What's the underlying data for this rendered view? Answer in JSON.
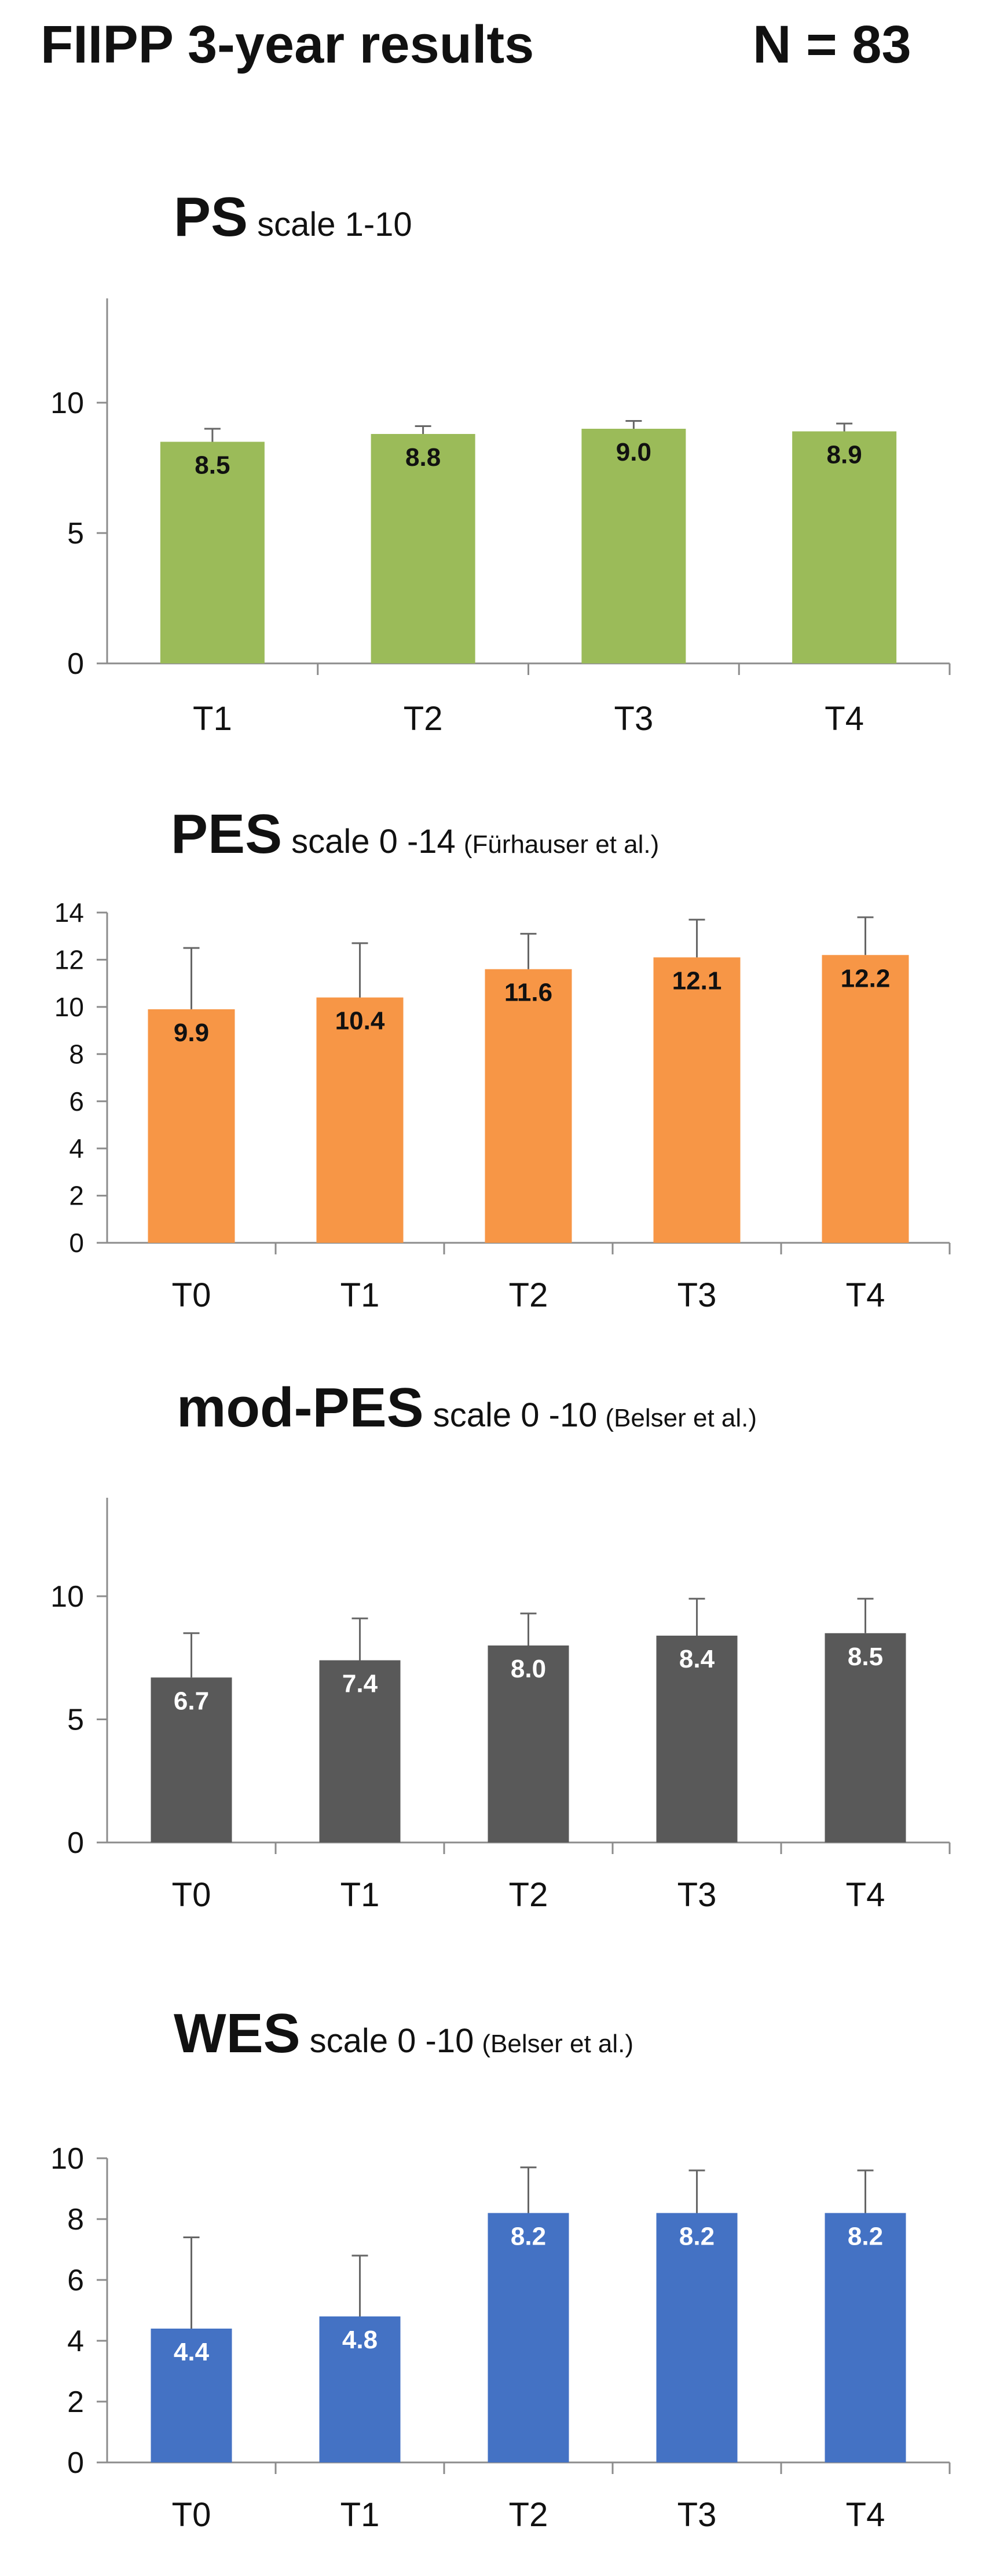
{
  "header": {
    "title": "FIIPP 3-year results",
    "n_label": "N = 83"
  },
  "chart_data": [
    {
      "type": "bar",
      "name": "PS",
      "scale": "scale 1-10",
      "citation": "",
      "color": "#9BBB59",
      "label_color": "#111111",
      "categories": [
        "T1",
        "T2",
        "T3",
        "T4"
      ],
      "values": [
        8.5,
        8.8,
        9.0,
        8.9
      ],
      "value_labels": [
        "8.5",
        "8.8",
        "9.0",
        "8.9"
      ],
      "error_upper": [
        0.5,
        0.3,
        0.3,
        0.3
      ],
      "ylim": [
        0,
        14
      ],
      "yticks": [
        0,
        5,
        10
      ],
      "ytick_labels": [
        "0",
        "5",
        "10"
      ],
      "xlabel": "",
      "ylabel": ""
    },
    {
      "type": "bar",
      "name": "PES",
      "scale": "scale 0 -14",
      "citation": "(Fürhauser et al.)",
      "color": "#F79646",
      "label_color": "#111111",
      "categories": [
        "T0",
        "T1",
        "T2",
        "T3",
        "T4"
      ],
      "values": [
        9.9,
        10.4,
        11.6,
        12.1,
        12.2
      ],
      "value_labels": [
        "9.9",
        "10.4",
        "11.6",
        "12.1",
        "12.2"
      ],
      "error_upper": [
        2.6,
        2.3,
        1.5,
        1.6,
        1.6
      ],
      "ylim": [
        0,
        14
      ],
      "yticks": [
        0,
        2,
        4,
        6,
        8,
        10,
        12,
        14
      ],
      "ytick_labels": [
        "0",
        "2",
        "4",
        "6",
        "8",
        "10",
        "12",
        "14"
      ],
      "xlabel": "",
      "ylabel": ""
    },
    {
      "type": "bar",
      "name": "mod-PES",
      "scale": "scale 0 -10",
      "citation": "(Belser et al.)",
      "color": "#595959",
      "label_color": "#ffffff",
      "categories": [
        "T0",
        "T1",
        "T2",
        "T3",
        "T4"
      ],
      "values": [
        6.7,
        7.4,
        8.0,
        8.4,
        8.5
      ],
      "value_labels": [
        "6.7",
        "7.4",
        "8.0",
        "8.4",
        "8.5"
      ],
      "error_upper": [
        1.8,
        1.7,
        1.3,
        1.5,
        1.4
      ],
      "ylim": [
        0,
        14
      ],
      "yticks": [
        0,
        5,
        10
      ],
      "ytick_labels": [
        "0",
        "5",
        "10"
      ],
      "xlabel": "",
      "ylabel": ""
    },
    {
      "type": "bar",
      "name": "WES",
      "scale": "scale 0 -10",
      "citation": "(Belser et al.)",
      "color": "#4472C4",
      "label_color": "#ffffff",
      "categories": [
        "T0",
        "T1",
        "T2",
        "T3",
        "T4"
      ],
      "values": [
        4.4,
        4.8,
        8.2,
        8.2,
        8.2
      ],
      "value_labels": [
        "4.4",
        "4.8",
        "8.2",
        "8.2",
        "8.2"
      ],
      "error_upper": [
        3.0,
        2.0,
        1.5,
        1.4,
        1.4
      ],
      "ylim": [
        0,
        10
      ],
      "yticks": [
        0,
        2,
        4,
        6,
        8,
        10
      ],
      "ytick_labels": [
        "0",
        "2",
        "4",
        "6",
        "8",
        "10"
      ],
      "xlabel": "",
      "ylabel": ""
    }
  ]
}
